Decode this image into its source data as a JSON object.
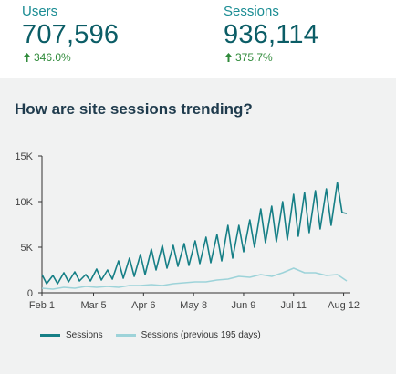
{
  "metrics": [
    {
      "label": "Users",
      "value": "707,596",
      "change": "346.0%"
    },
    {
      "label": "Sessions",
      "value": "936,114",
      "change": "375.7%"
    }
  ],
  "question": "How are site sessions trending?",
  "colors": {
    "sessions": "#167f86",
    "previous": "#9dd3d9",
    "increase": "#2f8a3a",
    "axis": "#333333"
  },
  "icons": {
    "increase": "arrow-up-icon"
  },
  "chart_data": {
    "type": "line",
    "title": "",
    "xlabel": "",
    "ylabel": "",
    "ylim": [
      0,
      15000
    ],
    "yticks": [
      0,
      5000,
      10000,
      15000
    ],
    "ytick_labels": [
      "0",
      "5K",
      "10K",
      "15K"
    ],
    "xlim": [
      "2016-02-01",
      "2016-08-14"
    ],
    "xticks": [
      "2016-02-01",
      "2016-03-05",
      "2016-04-06",
      "2016-05-08",
      "2016-06-09",
      "2016-07-11",
      "2016-08-12"
    ],
    "xtick_labels": [
      "Feb 1",
      "Mar 5",
      "Apr 6",
      "May 8",
      "Jun 9",
      "Jul 11",
      "Aug 12"
    ],
    "grid": false,
    "legend": "bottom",
    "series": [
      {
        "name": "Sessions",
        "x": [
          "2016-02-01",
          "2016-02-04",
          "2016-02-08",
          "2016-02-11",
          "2016-02-15",
          "2016-02-18",
          "2016-02-22",
          "2016-02-25",
          "2016-02-29",
          "2016-03-03",
          "2016-03-07",
          "2016-03-10",
          "2016-03-14",
          "2016-03-17",
          "2016-03-21",
          "2016-03-24",
          "2016-03-28",
          "2016-03-31",
          "2016-04-04",
          "2016-04-07",
          "2016-04-11",
          "2016-04-14",
          "2016-04-18",
          "2016-04-21",
          "2016-04-25",
          "2016-04-28",
          "2016-05-02",
          "2016-05-05",
          "2016-05-09",
          "2016-05-12",
          "2016-05-16",
          "2016-05-19",
          "2016-05-23",
          "2016-05-26",
          "2016-05-30",
          "2016-06-02",
          "2016-06-06",
          "2016-06-09",
          "2016-06-13",
          "2016-06-16",
          "2016-06-20",
          "2016-06-23",
          "2016-06-27",
          "2016-06-30",
          "2016-07-04",
          "2016-07-07",
          "2016-07-11",
          "2016-07-14",
          "2016-07-18",
          "2016-07-21",
          "2016-07-25",
          "2016-07-28",
          "2016-08-01",
          "2016-08-04",
          "2016-08-08",
          "2016-08-11",
          "2016-08-14"
        ],
        "values": [
          2000,
          1000,
          1900,
          1000,
          2200,
          1200,
          2300,
          1300,
          2000,
          1300,
          2600,
          1400,
          2500,
          1500,
          3500,
          1600,
          3800,
          1800,
          4200,
          2000,
          4800,
          2500,
          5200,
          2700,
          5200,
          2900,
          5400,
          3000,
          5700,
          3200,
          6100,
          3300,
          6400,
          3500,
          7400,
          3800,
          7400,
          4500,
          8000,
          5000,
          9200,
          5500,
          9500,
          5600,
          10000,
          5800,
          10800,
          6200,
          11000,
          6600,
          11200,
          7000,
          11400,
          7400,
          12100,
          8800,
          8700
        ]
      },
      {
        "name": "Sessions (previous 195 days)",
        "x": [
          "2016-02-01",
          "2016-02-08",
          "2016-02-15",
          "2016-02-22",
          "2016-02-29",
          "2016-03-07",
          "2016-03-14",
          "2016-03-21",
          "2016-03-28",
          "2016-04-04",
          "2016-04-11",
          "2016-04-18",
          "2016-04-25",
          "2016-05-02",
          "2016-05-09",
          "2016-05-16",
          "2016-05-23",
          "2016-05-30",
          "2016-06-06",
          "2016-06-13",
          "2016-06-20",
          "2016-06-27",
          "2016-07-04",
          "2016-07-11",
          "2016-07-18",
          "2016-07-25",
          "2016-08-01",
          "2016-08-08",
          "2016-08-14"
        ],
        "values": [
          500,
          400,
          600,
          500,
          700,
          600,
          700,
          600,
          800,
          800,
          900,
          800,
          1000,
          1100,
          1200,
          1200,
          1400,
          1500,
          1800,
          1700,
          2000,
          1800,
          2200,
          2700,
          2200,
          2200,
          1900,
          2000,
          1300
        ]
      }
    ]
  }
}
